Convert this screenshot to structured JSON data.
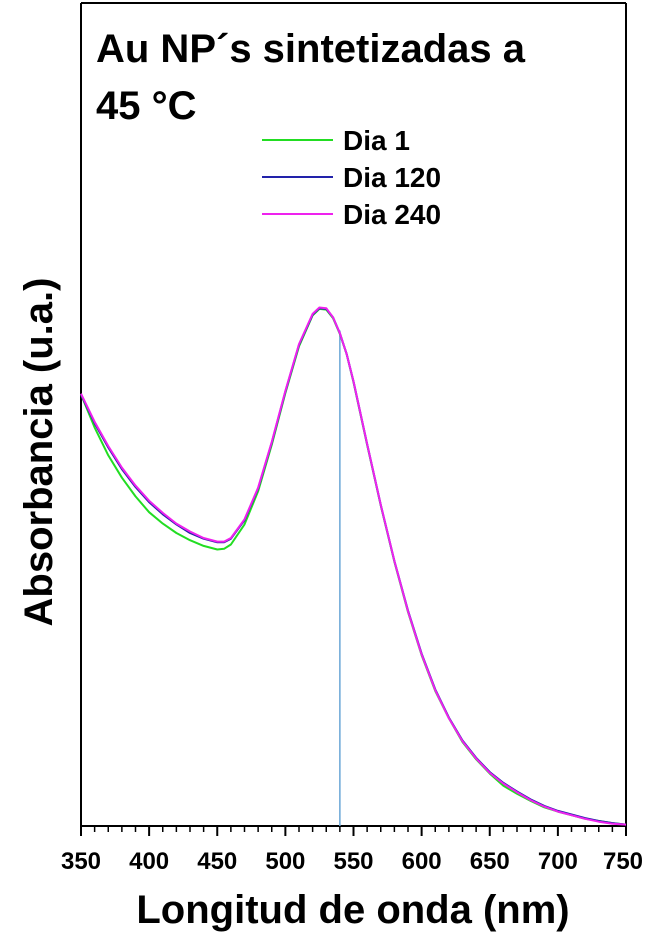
{
  "chart_data": {
    "type": "line",
    "title_lines": [
      "Au NP´s sintetizadas a",
      "45 °C"
    ],
    "xlabel": "Longitud de onda (nm)",
    "ylabel": "Absorbancia (u.a.)",
    "xlim": [
      350,
      750
    ],
    "ylim": [
      0,
      1.1
    ],
    "x_ticks": [
      350,
      400,
      450,
      500,
      550,
      600,
      650,
      700,
      750
    ],
    "x_tick_labels": [
      "350",
      "400",
      "450",
      "500",
      "550",
      "600",
      "650",
      "700",
      "750"
    ],
    "grid": false,
    "legend_position": "top-right",
    "vertical_marker_x": 540,
    "series": [
      {
        "name": "Dia 1",
        "color": "#22dd22",
        "x": [
          350,
          360,
          370,
          380,
          390,
          400,
          410,
          420,
          430,
          440,
          450,
          455,
          460,
          470,
          480,
          490,
          500,
          510,
          520,
          525,
          530,
          535,
          540,
          545,
          550,
          560,
          570,
          580,
          590,
          600,
          610,
          620,
          630,
          640,
          650,
          660,
          670,
          680,
          690,
          700,
          710,
          720,
          730,
          740,
          750
        ],
        "y": [
          0.601,
          0.555,
          0.516,
          0.485,
          0.459,
          0.437,
          0.421,
          0.408,
          0.398,
          0.39,
          0.385,
          0.386,
          0.392,
          0.42,
          0.466,
          0.531,
          0.603,
          0.668,
          0.711,
          0.72,
          0.719,
          0.707,
          0.685,
          0.657,
          0.618,
          0.531,
          0.446,
          0.368,
          0.298,
          0.238,
          0.188,
          0.15,
          0.117,
          0.093,
          0.073,
          0.056,
          0.045,
          0.035,
          0.026,
          0.02,
          0.015,
          0.01,
          0.007,
          0.004,
          0.002
        ]
      },
      {
        "name": "Dia 120",
        "color": "#2222aa",
        "x": [
          350,
          360,
          370,
          380,
          390,
          400,
          410,
          420,
          430,
          440,
          450,
          455,
          460,
          470,
          480,
          490,
          500,
          510,
          520,
          525,
          530,
          535,
          540,
          545,
          550,
          560,
          570,
          580,
          590,
          600,
          610,
          620,
          630,
          640,
          650,
          660,
          670,
          680,
          690,
          700,
          710,
          720,
          730,
          740,
          750
        ],
        "y": [
          0.601,
          0.561,
          0.527,
          0.497,
          0.472,
          0.451,
          0.434,
          0.42,
          0.408,
          0.4,
          0.395,
          0.395,
          0.4,
          0.426,
          0.47,
          0.534,
          0.605,
          0.67,
          0.712,
          0.721,
          0.72,
          0.708,
          0.686,
          0.657,
          0.619,
          0.532,
          0.447,
          0.369,
          0.3,
          0.24,
          0.19,
          0.151,
          0.119,
          0.095,
          0.075,
          0.06,
          0.048,
          0.037,
          0.028,
          0.021,
          0.016,
          0.011,
          0.007,
          0.004,
          0.002
        ]
      },
      {
        "name": "Dia 240",
        "color": "#ee22ee",
        "x": [
          350,
          360,
          370,
          380,
          390,
          400,
          410,
          420,
          430,
          440,
          450,
          455,
          460,
          470,
          480,
          490,
          500,
          510,
          520,
          525,
          530,
          535,
          540,
          545,
          550,
          560,
          570,
          580,
          590,
          600,
          610,
          620,
          630,
          640,
          650,
          660,
          670,
          680,
          690,
          700,
          710,
          720,
          730,
          740,
          750
        ],
        "y": [
          0.602,
          0.563,
          0.529,
          0.499,
          0.474,
          0.453,
          0.436,
          0.421,
          0.41,
          0.401,
          0.396,
          0.396,
          0.401,
          0.427,
          0.471,
          0.535,
          0.606,
          0.671,
          0.713,
          0.722,
          0.721,
          0.708,
          0.686,
          0.657,
          0.619,
          0.532,
          0.447,
          0.369,
          0.299,
          0.239,
          0.189,
          0.15,
          0.118,
          0.094,
          0.074,
          0.059,
          0.047,
          0.036,
          0.027,
          0.02,
          0.015,
          0.01,
          0.006,
          0.003,
          0.002
        ]
      }
    ]
  },
  "colors": {
    "marker_line": "#6aa6d6",
    "axis": "#000000"
  }
}
